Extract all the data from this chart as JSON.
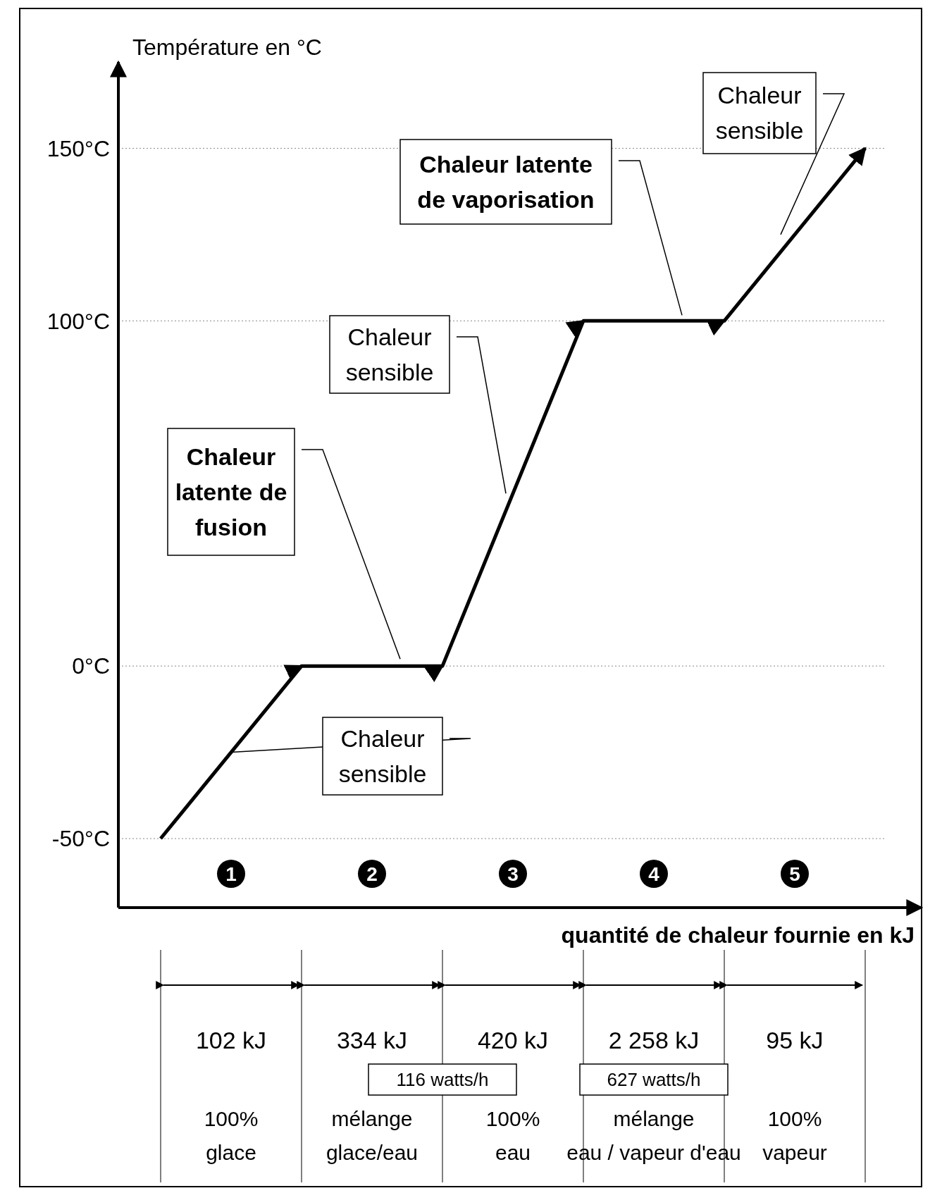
{
  "chart_data": {
    "type": "line",
    "ylabel": "Température en °C",
    "xlabel": "quantité de chaleur fournie en kJ",
    "categories": [
      null,
      null,
      null,
      null,
      null,
      null
    ],
    "values": [
      -50,
      0,
      0,
      100,
      100,
      150
    ],
    "color": "#000000",
    "ylim": [
      -70,
      175
    ],
    "yticks": [
      {
        "value": -50,
        "label": "-50°C"
      },
      {
        "value": 0,
        "label": "0°C"
      },
      {
        "value": 100,
        "label": "100°C"
      },
      {
        "value": 150,
        "label": "150°C"
      }
    ],
    "grid": "y",
    "annotations": [
      "Chaleur latente de fusion",
      "Chaleur sensible",
      "Chaleur sensible",
      "Chaleur latente de vaporisation",
      "Chaleur sensible",
      "1",
      "2",
      "3",
      "4",
      "5",
      "102 kJ",
      "334 kJ",
      "420 kJ",
      "2 258 kJ",
      "95 kJ",
      "100% glace",
      "mélange glace/eau",
      "100% eau",
      "mélange eau / vapeur d'eau",
      "100% vapeur",
      "116 watts/h",
      "627 watts/h"
    ]
  }
}
